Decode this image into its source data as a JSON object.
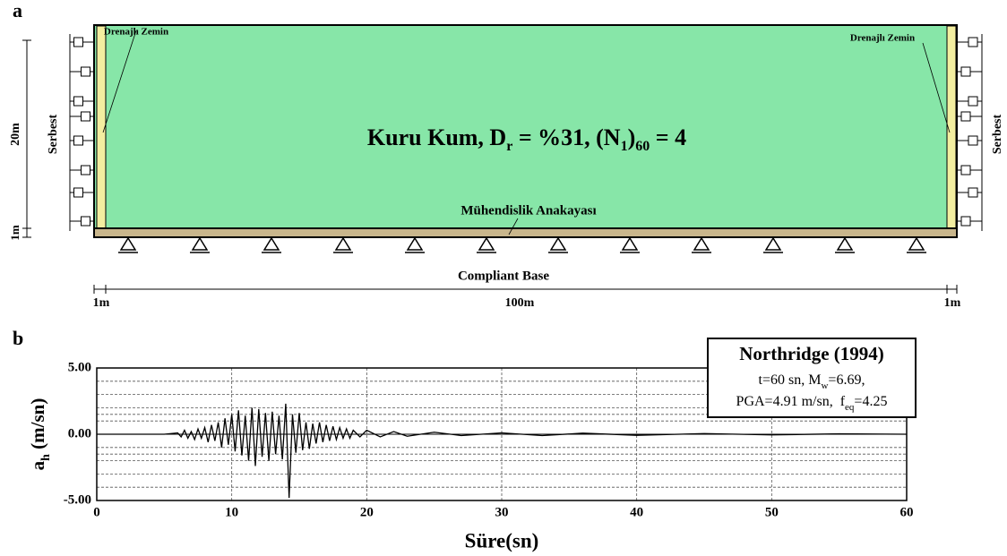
{
  "panel_labels": [
    "a",
    "b"
  ],
  "diagram": {
    "drain_left": "Drenajlı Zemin",
    "drain_right": "Drenajlı Zemin",
    "soil": [
      "Kuru Kum, D",
      "r",
      " = %31, (N",
      "1",
      ")",
      "60",
      " = 4"
    ],
    "bedrock": "Mühendislik Anakayası",
    "base": "Compliant Base",
    "dims": {
      "height": "20m",
      "base_thickness": "1m",
      "left": "1m",
      "center": "100m",
      "right": "1m"
    },
    "boundary_left": "Serbest",
    "boundary_right": "Serbest"
  },
  "chart_data": {
    "type": "line",
    "color": "#000000",
    "xlabel": "Süre(sn)",
    "ylabel": [
      "a",
      "h",
      " (m/sn)"
    ],
    "annotation": {
      "title": "Northridge (1994)",
      "line1": [
        "t=60 sn, M",
        "w",
        "=6.69,"
      ],
      "line2": [
        "PGA=4.91 m/sn,  f",
        "eq",
        "=4.25"
      ]
    },
    "xlim": [
      0,
      60
    ],
    "ylim": [
      -5,
      5
    ],
    "xticks": [
      0,
      10,
      20,
      30,
      40,
      50,
      60
    ],
    "yticks": [
      {
        "value": -5,
        "label": "-5.00"
      },
      {
        "value": 0,
        "label": "0.00"
      },
      {
        "value": 5,
        "label": "5.00"
      }
    ],
    "minor_yticks": [
      -4,
      -3,
      -2,
      -1.5,
      -1,
      1,
      1.5,
      2,
      3,
      4
    ],
    "grid": true,
    "x": [
      0,
      5,
      6,
      6.25,
      6.5,
      6.75,
      7,
      7.25,
      7.5,
      7.75,
      8,
      8.25,
      8.5,
      8.75,
      9,
      9.25,
      9.5,
      9.75,
      10,
      10.25,
      10.5,
      10.75,
      11,
      11.25,
      11.5,
      11.75,
      12,
      12.25,
      12.5,
      12.75,
      13,
      13.25,
      13.5,
      13.75,
      14,
      14.25,
      14.5,
      14.75,
      15,
      15.25,
      15.5,
      15.75,
      16,
      16.25,
      16.5,
      16.75,
      17,
      17.25,
      17.5,
      17.75,
      18,
      18.25,
      18.5,
      18.75,
      19,
      19.5,
      20,
      21,
      22,
      23,
      25,
      27,
      30,
      33,
      36,
      40,
      45,
      50,
      55,
      60
    ],
    "values": [
      0,
      0,
      0.1,
      -0.2,
      0.3,
      -0.3,
      0.2,
      -0.4,
      0.4,
      -0.3,
      0.5,
      -0.6,
      0.7,
      -0.5,
      0.9,
      -1.0,
      1.2,
      -0.8,
      1.5,
      -1.3,
      1.8,
      -1.6,
      1.4,
      -2.0,
      2.0,
      -2.4,
      1.9,
      -1.7,
      1.6,
      -2.0,
      1.7,
      -1.5,
      1.4,
      -1.9,
      2.3,
      -4.8,
      1.5,
      -1.4,
      1.6,
      -1.2,
      0.9,
      -1.1,
      0.8,
      -0.7,
      0.9,
      -0.6,
      0.7,
      -0.5,
      0.6,
      -0.4,
      0.5,
      -0.3,
      0.4,
      -0.3,
      0.3,
      -0.2,
      0.3,
      -0.2,
      0.2,
      -0.15,
      0.15,
      -0.1,
      0.1,
      -0.1,
      0.08,
      -0.08,
      0.05,
      -0.05,
      0.03,
      0
    ]
  }
}
